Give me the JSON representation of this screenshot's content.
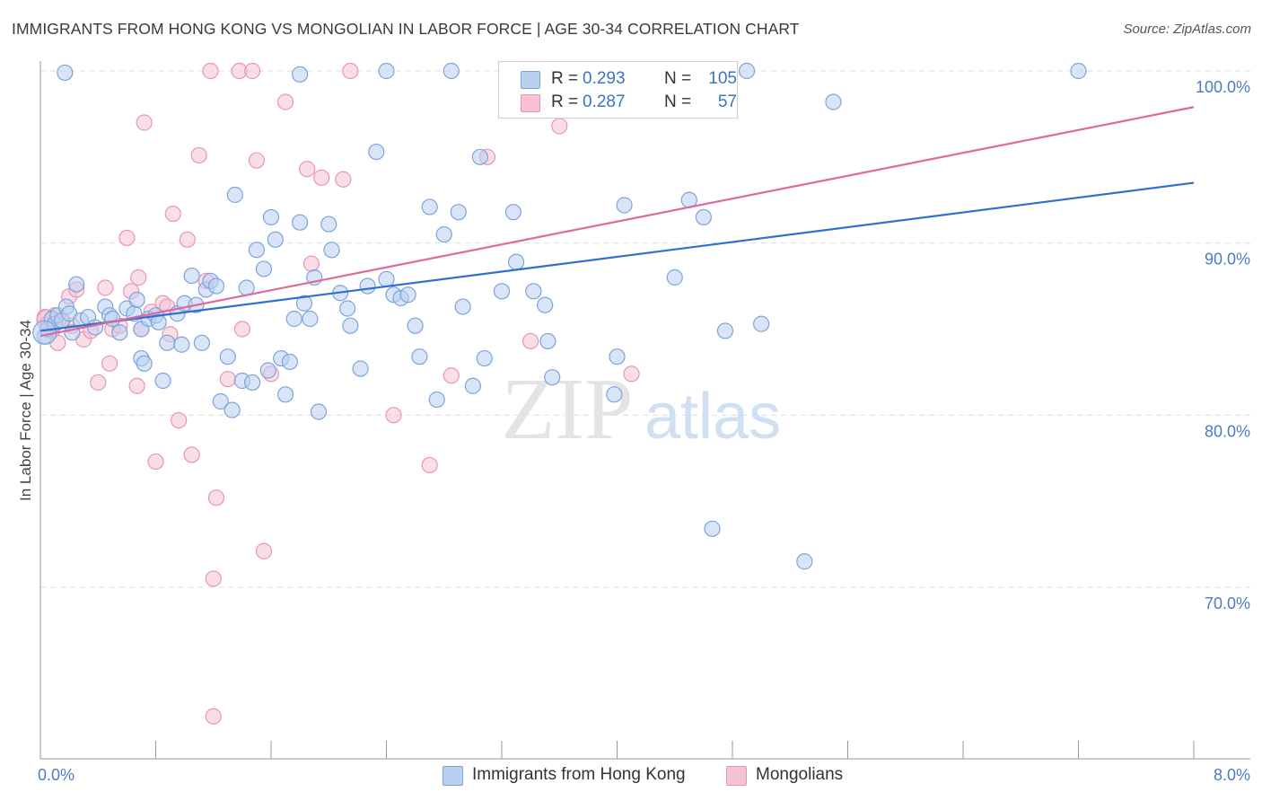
{
  "title": "IMMIGRANTS FROM HONG KONG VS MONGOLIAN IN LABOR FORCE | AGE 30-34 CORRELATION CHART",
  "source": "Source: ZipAtlas.com",
  "watermark": {
    "zip": "ZIP",
    "atlas": "atlas"
  },
  "colors": {
    "blue_fill": "#b9d0f0",
    "blue_stroke": "#7aa4dc",
    "blue_line": "#2e6fd0",
    "pink_fill": "#f6c2d3",
    "pink_stroke": "#e994b2",
    "pink_line": "#e0689a",
    "tick_text": "#4a7cc4",
    "grid": "#dddddd"
  },
  "legend": {
    "rows": [
      {
        "r_label": "R =",
        "r_value": "0.293",
        "n_label": "N =",
        "n_value": "105"
      },
      {
        "r_label": "R =",
        "r_value": "0.287",
        "n_label": "N =",
        "n_value": "57"
      }
    ]
  },
  "bottom_legend": [
    "Immigrants from Hong Kong",
    "Mongolians"
  ],
  "chart_data": {
    "type": "scatter",
    "title": "IMMIGRANTS FROM HONG KONG VS MONGOLIAN IN LABOR FORCE | AGE 30-34 CORRELATION CHART",
    "xlabel": "",
    "ylabel": "In Labor Force | Age 30-34",
    "xlim": [
      0,
      8
    ],
    "ylim": [
      61,
      101.5
    ],
    "x_tick_labels": [
      {
        "value": 0,
        "label": "0.0%"
      },
      {
        "value": 8,
        "label": "8.0%"
      }
    ],
    "x_minor_ticks": [
      0.8,
      1.6,
      2.4,
      3.2,
      4.0,
      4.8,
      5.6,
      6.4,
      7.2
    ],
    "y_ticks": [
      {
        "value": 70,
        "label": "70.0%"
      },
      {
        "value": 80,
        "label": "80.0%"
      },
      {
        "value": 90,
        "label": "90.0%"
      },
      {
        "value": 100,
        "label": "100.0%"
      }
    ],
    "grid": true,
    "legend_position": "top-center",
    "series": [
      {
        "name": "Immigrants from Hong Kong",
        "color": "#7aa4dc",
        "r": 0.293,
        "n": 105,
        "trend": {
          "x0": 0.0,
          "y0": 84.9,
          "x1": 8.0,
          "y1": 93.5
        },
        "points": [
          [
            0.03,
            84.6
          ],
          [
            0.05,
            85.0
          ],
          [
            0.08,
            85.6
          ],
          [
            0.1,
            85.3
          ],
          [
            0.12,
            85.8
          ],
          [
            0.15,
            85.5
          ],
          [
            0.18,
            86.3
          ],
          [
            0.2,
            85.9
          ],
          [
            0.22,
            84.8
          ],
          [
            0.25,
            87.6
          ],
          [
            0.28,
            85.5
          ],
          [
            0.33,
            85.7
          ],
          [
            0.38,
            85.1
          ],
          [
            0.45,
            86.3
          ],
          [
            0.48,
            85.8
          ],
          [
            0.5,
            85.6
          ],
          [
            0.55,
            84.8
          ],
          [
            0.6,
            86.2
          ],
          [
            0.65,
            85.9
          ],
          [
            0.67,
            86.7
          ],
          [
            0.7,
            85.0
          ],
          [
            0.7,
            83.3
          ],
          [
            0.72,
            83.0
          ],
          [
            0.75,
            85.6
          ],
          [
            0.8,
            85.8
          ],
          [
            0.82,
            85.4
          ],
          [
            0.85,
            82.0
          ],
          [
            0.88,
            84.2
          ],
          [
            0.95,
            85.9
          ],
          [
            0.98,
            84.1
          ],
          [
            1.0,
            86.5
          ],
          [
            1.05,
            88.1
          ],
          [
            1.08,
            86.4
          ],
          [
            1.12,
            84.2
          ],
          [
            1.15,
            87.3
          ],
          [
            1.18,
            87.8
          ],
          [
            1.22,
            87.5
          ],
          [
            1.25,
            80.8
          ],
          [
            1.3,
            83.4
          ],
          [
            1.33,
            80.3
          ],
          [
            1.35,
            92.8
          ],
          [
            1.4,
            82.0
          ],
          [
            1.43,
            87.4
          ],
          [
            1.47,
            81.9
          ],
          [
            1.5,
            89.6
          ],
          [
            1.55,
            88.5
          ],
          [
            1.58,
            82.6
          ],
          [
            1.6,
            91.5
          ],
          [
            1.63,
            90.2
          ],
          [
            1.67,
            83.3
          ],
          [
            1.7,
            81.2
          ],
          [
            1.73,
            83.1
          ],
          [
            1.76,
            85.6
          ],
          [
            1.8,
            91.2
          ],
          [
            1.83,
            86.5
          ],
          [
            1.87,
            85.6
          ],
          [
            1.9,
            88.0
          ],
          [
            1.93,
            80.2
          ],
          [
            2.0,
            91.1
          ],
          [
            2.02,
            89.6
          ],
          [
            2.08,
            87.1
          ],
          [
            2.13,
            86.2
          ],
          [
            2.15,
            85.2
          ],
          [
            2.22,
            82.7
          ],
          [
            2.27,
            87.5
          ],
          [
            2.33,
            95.3
          ],
          [
            2.4,
            87.9
          ],
          [
            2.45,
            87.0
          ],
          [
            2.5,
            86.8
          ],
          [
            2.55,
            87.0
          ],
          [
            2.6,
            85.2
          ],
          [
            2.63,
            83.4
          ],
          [
            2.7,
            92.1
          ],
          [
            2.75,
            80.9
          ],
          [
            2.8,
            90.5
          ],
          [
            2.9,
            91.8
          ],
          [
            2.93,
            86.3
          ],
          [
            3.0,
            81.7
          ],
          [
            3.05,
            95.0
          ],
          [
            3.08,
            83.3
          ],
          [
            3.2,
            87.2
          ],
          [
            3.28,
            91.8
          ],
          [
            3.3,
            88.9
          ],
          [
            3.42,
            87.2
          ],
          [
            3.5,
            86.4
          ],
          [
            3.52,
            84.3
          ],
          [
            3.55,
            82.2
          ],
          [
            3.98,
            81.2
          ],
          [
            4.0,
            83.4
          ],
          [
            4.05,
            92.2
          ],
          [
            4.4,
            88.0
          ],
          [
            4.5,
            92.5
          ],
          [
            4.6,
            91.5
          ],
          [
            4.66,
            73.4
          ],
          [
            4.75,
            84.9
          ],
          [
            5.0,
            85.3
          ],
          [
            5.3,
            71.5
          ],
          [
            5.5,
            98.2
          ],
          [
            0.17,
            99.9
          ],
          [
            1.8,
            99.8
          ],
          [
            2.4,
            100.0
          ],
          [
            2.85,
            100.0
          ],
          [
            3.45,
            100.0
          ],
          [
            4.9,
            100.0
          ],
          [
            7.2,
            100.0
          ]
        ]
      },
      {
        "name": "Mongolians",
        "color": "#e994b2",
        "r": 0.287,
        "n": 57,
        "trend": {
          "x0": 0.0,
          "y0": 84.6,
          "x1": 8.0,
          "y1": 97.9
        },
        "points": [
          [
            0.03,
            85.7
          ],
          [
            0.05,
            85.3
          ],
          [
            0.08,
            84.9
          ],
          [
            0.1,
            85.8
          ],
          [
            0.12,
            84.2
          ],
          [
            0.15,
            85.5
          ],
          [
            0.2,
            86.9
          ],
          [
            0.22,
            85.2
          ],
          [
            0.25,
            87.3
          ],
          [
            0.3,
            84.4
          ],
          [
            0.35,
            84.9
          ],
          [
            0.4,
            81.9
          ],
          [
            0.45,
            87.4
          ],
          [
            0.5,
            85.0
          ],
          [
            0.55,
            85.2
          ],
          [
            0.6,
            90.3
          ],
          [
            0.63,
            87.2
          ],
          [
            0.67,
            81.7
          ],
          [
            0.7,
            85.0
          ],
          [
            0.72,
            97.0
          ],
          [
            0.77,
            86.0
          ],
          [
            0.8,
            77.3
          ],
          [
            0.85,
            86.5
          ],
          [
            0.88,
            86.3
          ],
          [
            0.9,
            84.7
          ],
          [
            0.92,
            91.7
          ],
          [
            0.96,
            79.7
          ],
          [
            1.02,
            90.2
          ],
          [
            1.05,
            77.7
          ],
          [
            1.1,
            95.1
          ],
          [
            1.15,
            87.8
          ],
          [
            1.22,
            75.2
          ],
          [
            1.3,
            82.1
          ],
          [
            1.4,
            85.0
          ],
          [
            1.5,
            94.8
          ],
          [
            1.55,
            72.1
          ],
          [
            1.6,
            82.4
          ],
          [
            1.7,
            98.2
          ],
          [
            1.85,
            94.3
          ],
          [
            1.95,
            93.8
          ],
          [
            2.1,
            93.7
          ],
          [
            2.45,
            80.0
          ],
          [
            2.7,
            77.1
          ],
          [
            2.85,
            82.3
          ],
          [
            3.1,
            95.0
          ],
          [
            3.4,
            84.3
          ],
          [
            3.6,
            96.8
          ],
          [
            1.18,
            100.0
          ],
          [
            1.38,
            100.0
          ],
          [
            1.47,
            100.0
          ],
          [
            2.15,
            100.0
          ],
          [
            1.2,
            70.5
          ],
          [
            1.2,
            62.5
          ],
          [
            0.68,
            88.0
          ],
          [
            1.88,
            88.8
          ],
          [
            0.48,
            83.0
          ],
          [
            4.1,
            82.4
          ]
        ]
      }
    ]
  }
}
